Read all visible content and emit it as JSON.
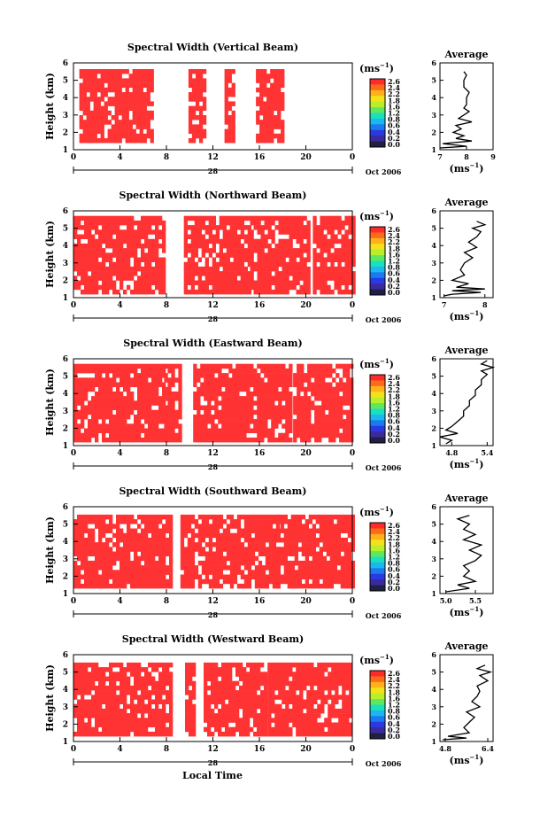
{
  "figure": {
    "xlabel": "Local Time",
    "date_mark": "28",
    "date_label": "Oct 2006",
    "ylabel": "Height (km)",
    "colorbar_unit": "(ms",
    "colorbar_unit_sup": "−1",
    "colorbar_unit_close": ")",
    "colorbar_ticks": [
      "2.6",
      "2.4",
      "2.2",
      "1.8",
      "1.6",
      "1.2",
      "0.8",
      "0.6",
      "0.4",
      "0.2",
      "0.0"
    ],
    "average_title": "Average",
    "x_ticks": [
      "0",
      "4",
      "8",
      "12",
      "16",
      "20",
      "0"
    ],
    "y_ticks": [
      "1",
      "2",
      "3",
      "4",
      "5",
      "6"
    ]
  },
  "chart_data": [
    {
      "type": "heatmap",
      "title": "Spectral Width (Vertical Beam)",
      "ylabel": "Height (km)",
      "xlabel": "",
      "x_ticks": [
        "0",
        "4",
        "8",
        "12",
        "16",
        "20",
        "0"
      ],
      "y_ticks": [
        "1",
        "2",
        "3",
        "4",
        "5",
        "6"
      ],
      "ylim": [
        1,
        6
      ],
      "xlim": [
        0,
        24
      ],
      "dominant_value_color": "#ff3333",
      "data_time_ranges_h": [
        [
          0.5,
          6.7
        ],
        [
          9.9,
          11.3
        ],
        [
          13.0,
          13.8
        ],
        [
          15.7,
          18.0
        ]
      ],
      "data_height_km": [
        1.4,
        5.5
      ],
      "average_profile": {
        "xlabel": "(ms−1)",
        "x_ticks": [
          "7",
          "8",
          "9"
        ],
        "xlim": [
          7,
          9
        ],
        "points": [
          [
            7.0,
            1.1
          ],
          [
            8.0,
            1.2
          ],
          [
            7.1,
            1.35
          ],
          [
            8.2,
            1.5
          ],
          [
            7.6,
            1.65
          ],
          [
            7.9,
            1.8
          ],
          [
            7.5,
            2.0
          ],
          [
            7.8,
            2.2
          ],
          [
            7.6,
            2.4
          ],
          [
            8.2,
            2.6
          ],
          [
            7.7,
            2.8
          ],
          [
            7.9,
            3.0
          ],
          [
            8.1,
            3.2
          ],
          [
            7.9,
            3.4
          ],
          [
            8.0,
            3.6
          ],
          [
            8.0,
            3.8
          ],
          [
            8.0,
            4.0
          ],
          [
            8.1,
            4.3
          ],
          [
            7.9,
            4.6
          ],
          [
            7.9,
            5.0
          ],
          [
            8.0,
            5.3
          ],
          [
            7.9,
            5.5
          ]
        ]
      }
    },
    {
      "type": "heatmap",
      "title": "Spectral Width (Northward Beam)",
      "ylabel": "Height (km)",
      "xlabel": "",
      "x_ticks": [
        "0",
        "4",
        "8",
        "12",
        "16",
        "20",
        "0"
      ],
      "y_ticks": [
        "1",
        "2",
        "3",
        "4",
        "5",
        "6"
      ],
      "ylim": [
        1,
        6
      ],
      "xlim": [
        0,
        24
      ],
      "dominant_value_color": "#ff3333",
      "data_time_ranges_h": [
        [
          0.0,
          7.8
        ],
        [
          9.5,
          15.0
        ],
        [
          15.2,
          20.3
        ],
        [
          20.6,
          24.0
        ]
      ],
      "data_height_km": [
        1.2,
        5.5
      ],
      "average_profile": {
        "xlabel": "(ms−1)",
        "x_ticks": [
          "7",
          "8"
        ],
        "xlim": [
          6.9,
          8.2
        ],
        "points": [
          [
            7.0,
            1.1
          ],
          [
            7.2,
            1.2
          ],
          [
            7.9,
            1.3
          ],
          [
            7.2,
            1.4
          ],
          [
            8.0,
            1.5
          ],
          [
            7.3,
            1.6
          ],
          [
            7.6,
            1.8
          ],
          [
            7.2,
            2.0
          ],
          [
            7.5,
            2.3
          ],
          [
            7.4,
            2.6
          ],
          [
            7.5,
            3.0
          ],
          [
            7.7,
            3.3
          ],
          [
            7.5,
            3.6
          ],
          [
            7.8,
            3.9
          ],
          [
            7.6,
            4.2
          ],
          [
            7.8,
            4.5
          ],
          [
            7.9,
            4.8
          ],
          [
            7.7,
            5.0
          ],
          [
            8.0,
            5.2
          ],
          [
            7.8,
            5.4
          ]
        ]
      }
    },
    {
      "type": "heatmap",
      "title": "Spectral Width (Eastward Beam)",
      "ylabel": "Height (km)",
      "xlabel": "",
      "x_ticks": [
        "0",
        "4",
        "8",
        "12",
        "16",
        "20",
        "0"
      ],
      "y_ticks": [
        "1",
        "2",
        "3",
        "4",
        "5",
        "6"
      ],
      "ylim": [
        1,
        6
      ],
      "xlim": [
        0,
        24
      ],
      "dominant_value_color": "#ff3333",
      "data_time_ranges_h": [
        [
          0.0,
          7.8
        ],
        [
          7.8,
          9.2
        ],
        [
          10.3,
          18.8
        ],
        [
          18.9,
          24.0
        ]
      ],
      "data_height_km": [
        1.2,
        5.5
      ],
      "average_profile": {
        "xlabel": "(ms−1)",
        "x_ticks": [
          "4.8",
          "5.4"
        ],
        "xlim": [
          4.6,
          5.5
        ],
        "points": [
          [
            4.7,
            1.1
          ],
          [
            4.8,
            1.3
          ],
          [
            4.6,
            1.5
          ],
          [
            4.9,
            1.7
          ],
          [
            4.7,
            1.9
          ],
          [
            4.8,
            2.1
          ],
          [
            4.9,
            2.4
          ],
          [
            5.0,
            2.7
          ],
          [
            5.0,
            3.0
          ],
          [
            5.1,
            3.3
          ],
          [
            5.1,
            3.6
          ],
          [
            5.2,
            3.9
          ],
          [
            5.2,
            4.2
          ],
          [
            5.3,
            4.5
          ],
          [
            5.3,
            4.8
          ],
          [
            5.4,
            5.1
          ],
          [
            5.3,
            5.3
          ],
          [
            5.5,
            5.5
          ],
          [
            5.3,
            5.7
          ],
          [
            5.4,
            5.9
          ]
        ]
      }
    },
    {
      "type": "heatmap",
      "title": "Spectral Width (Southward Beam)",
      "ylabel": "Height (km)",
      "xlabel": "",
      "x_ticks": [
        "0",
        "4",
        "8",
        "12",
        "16",
        "20",
        "0"
      ],
      "y_ticks": [
        "1",
        "2",
        "3",
        "4",
        "5",
        "6"
      ],
      "ylim": [
        1,
        6
      ],
      "xlim": [
        0,
        24
      ],
      "dominant_value_color": "#ff3333",
      "data_time_ranges_h": [
        [
          0.0,
          8.5
        ],
        [
          9.2,
          17.5
        ],
        [
          17.5,
          24.0
        ]
      ],
      "data_height_km": [
        1.3,
        5.5
      ],
      "average_profile": {
        "xlabel": "(ms−1)",
        "x_ticks": [
          "5.0",
          "5.5"
        ],
        "xlim": [
          4.9,
          5.8
        ],
        "points": [
          [
            5.0,
            1.1
          ],
          [
            5.4,
            1.3
          ],
          [
            5.2,
            1.5
          ],
          [
            5.5,
            1.7
          ],
          [
            5.3,
            2.0
          ],
          [
            5.4,
            2.3
          ],
          [
            5.3,
            2.6
          ],
          [
            5.5,
            2.9
          ],
          [
            5.6,
            3.2
          ],
          [
            5.4,
            3.5
          ],
          [
            5.6,
            3.8
          ],
          [
            5.3,
            4.1
          ],
          [
            5.5,
            4.4
          ],
          [
            5.3,
            4.7
          ],
          [
            5.4,
            5.0
          ],
          [
            5.2,
            5.3
          ],
          [
            5.4,
            5.5
          ]
        ]
      }
    },
    {
      "type": "heatmap",
      "title": "Spectral Width (Westward Beam)",
      "ylabel": "Height (km)",
      "xlabel": "Local Time",
      "x_ticks": [
        "0",
        "4",
        "8",
        "12",
        "16",
        "20",
        "0"
      ],
      "y_ticks": [
        "1",
        "2",
        "3",
        "4",
        "5",
        "6"
      ],
      "ylim": [
        1,
        6
      ],
      "xlim": [
        0,
        24
      ],
      "dominant_value_color": "#ff3333",
      "data_time_ranges_h": [
        [
          0.0,
          8.3
        ],
        [
          9.6,
          10.3
        ],
        [
          11.2,
          16.5
        ],
        [
          16.7,
          24.0
        ]
      ],
      "data_height_km": [
        1.3,
        5.5
      ],
      "average_profile": {
        "xlabel": "(ms−1)",
        "x_ticks": [
          "4.8",
          "6.4"
        ],
        "xlim": [
          4.6,
          6.6
        ],
        "points": [
          [
            4.7,
            1.1
          ],
          [
            5.6,
            1.2
          ],
          [
            4.9,
            1.3
          ],
          [
            5.7,
            1.5
          ],
          [
            5.5,
            1.8
          ],
          [
            5.7,
            2.1
          ],
          [
            5.9,
            2.4
          ],
          [
            5.6,
            2.7
          ],
          [
            6.1,
            3.0
          ],
          [
            5.8,
            3.3
          ],
          [
            6.0,
            3.6
          ],
          [
            6.1,
            3.9
          ],
          [
            6.0,
            4.2
          ],
          [
            6.4,
            4.5
          ],
          [
            6.1,
            4.8
          ],
          [
            6.5,
            5.0
          ],
          [
            6.0,
            5.2
          ],
          [
            6.3,
            5.4
          ]
        ]
      }
    }
  ]
}
